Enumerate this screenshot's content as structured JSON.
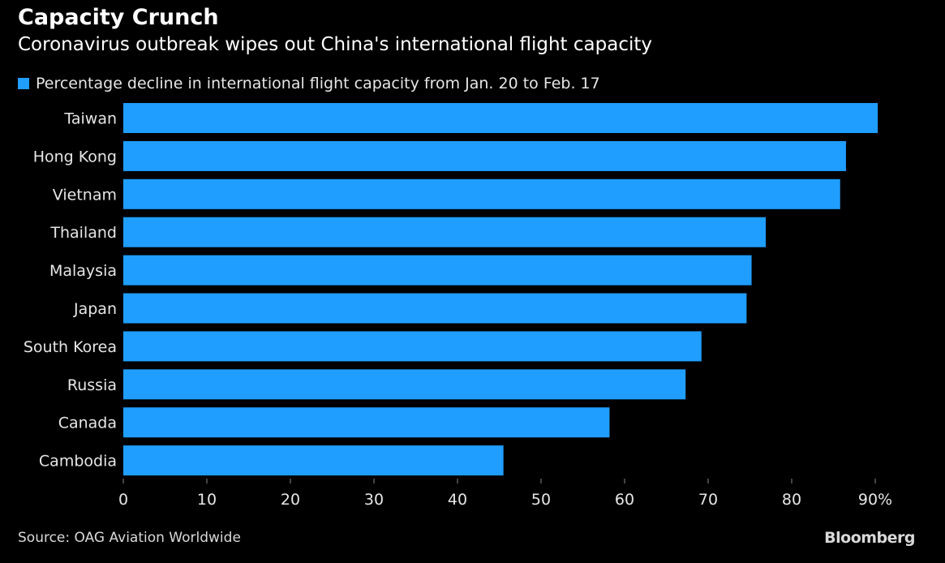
{
  "title": "Capacity Crunch",
  "subtitle": "Coronavirus outbreak wipes out China's international flight capacity",
  "source": "Source: OAG Aviation Worldwide",
  "brand": "Bloomberg",
  "colors": {
    "bar": "#1f9eff",
    "background": "#000000",
    "axis": "#888888"
  },
  "chart_data": {
    "type": "bar",
    "orientation": "horizontal",
    "categories": [
      "Taiwan",
      "Hong Kong",
      "Vietnam",
      "Thailand",
      "Malaysia",
      "Japan",
      "South Korea",
      "Russia",
      "Canada",
      "Cambodia"
    ],
    "series": [
      {
        "name": "Percentage decline in international flight capacity from Jan. 20 to Feb. 17",
        "values": [
          90.3,
          86.5,
          85.8,
          76.9,
          75.2,
          74.6,
          69.2,
          67.3,
          58.2,
          45.5
        ]
      }
    ],
    "xlim": [
      0,
      90
    ],
    "ticks": [
      "0",
      "10",
      "20",
      "30",
      "40",
      "50",
      "60",
      "70",
      "80",
      "90%"
    ],
    "tick_values": [
      0,
      10,
      20,
      30,
      40,
      50,
      60,
      70,
      80,
      90
    ],
    "legend_position": "top-left",
    "grid": false
  }
}
